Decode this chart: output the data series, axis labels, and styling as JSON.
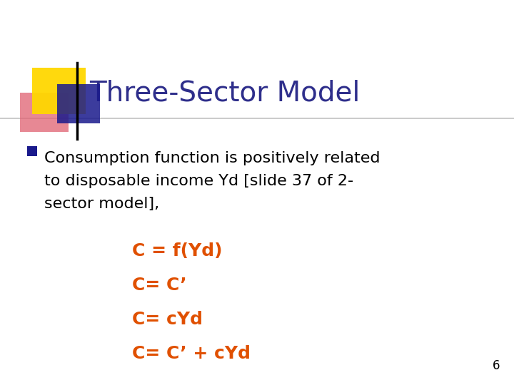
{
  "title": "Three-Sector Model",
  "title_color": "#2E2E8B",
  "title_fontsize": 28,
  "bg_color": "#FFFFFF",
  "bullet_text_lines": [
    "Consumption function is positively related",
    "to disposable income Yd [slide 37 of 2-",
    "sector model],"
  ],
  "bullet_color": "#000000",
  "bullet_fontsize": 16,
  "equations": [
    "C = f(Yd)",
    "C= C’",
    "C= cYd",
    "C= C’ + cYd"
  ],
  "eq_color": "#E05000",
  "eq_fontsize": 18,
  "page_number": "6",
  "page_color": "#000000",
  "page_fontsize": 12,
  "bullet_marker_color": "#1A1A8C",
  "line_color": "#999999",
  "yellow_color": "#FFD700",
  "red_color": "#E06070",
  "blue_color": "#1A1A8C"
}
